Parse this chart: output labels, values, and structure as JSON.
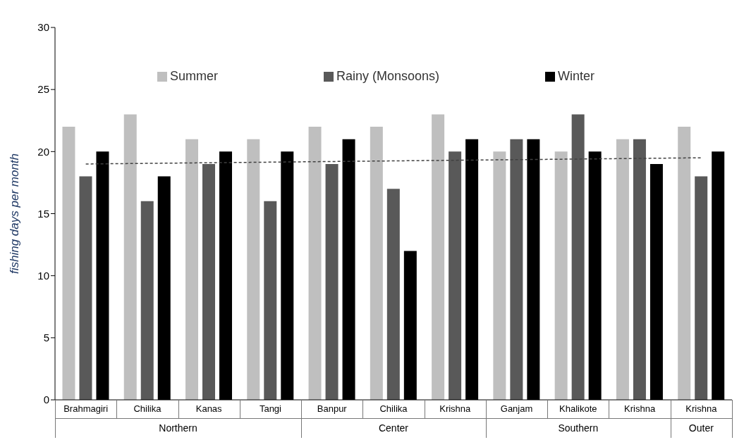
{
  "chart_data": {
    "type": "bar",
    "ylabel": "fishing days per month",
    "categories": [
      "Brahmagiri",
      "Chilika",
      "Kanas",
      "Tangi",
      "Banpur",
      "Chilika",
      "Krishna",
      "Ganjam",
      "Khalikote",
      "Krishna",
      "Krishna"
    ],
    "series": [
      {
        "name": "Summer",
        "color": "#bfbfbf",
        "values": [
          22,
          23,
          21,
          21,
          22,
          22,
          23,
          20,
          20,
          21,
          22
        ]
      },
      {
        "name": "Rainy (Monsoons)",
        "color": "#595959",
        "values": [
          18,
          16,
          19,
          16,
          19,
          17,
          20,
          21,
          23,
          21,
          18
        ]
      },
      {
        "name": "Winter",
        "color": "#000000",
        "values": [
          20,
          18,
          20,
          20,
          21,
          12,
          21,
          21,
          20,
          19,
          20
        ]
      },
      {
        "type": "line",
        "color": "#404040",
        "line_style": "dashed",
        "marker": "none",
        "values": [
          19.0,
          19.05,
          19.1,
          19.15,
          19.2,
          19.25,
          19.3,
          19.35,
          19.4,
          19.45,
          19.5
        ]
      }
    ],
    "ylim": [
      0,
      30
    ],
    "yticks": [
      0,
      5,
      10,
      15,
      20,
      25,
      30
    ],
    "legend": "top",
    "annotations": [
      "Northern",
      "Center",
      "Southern",
      "Outer"
    ]
  }
}
